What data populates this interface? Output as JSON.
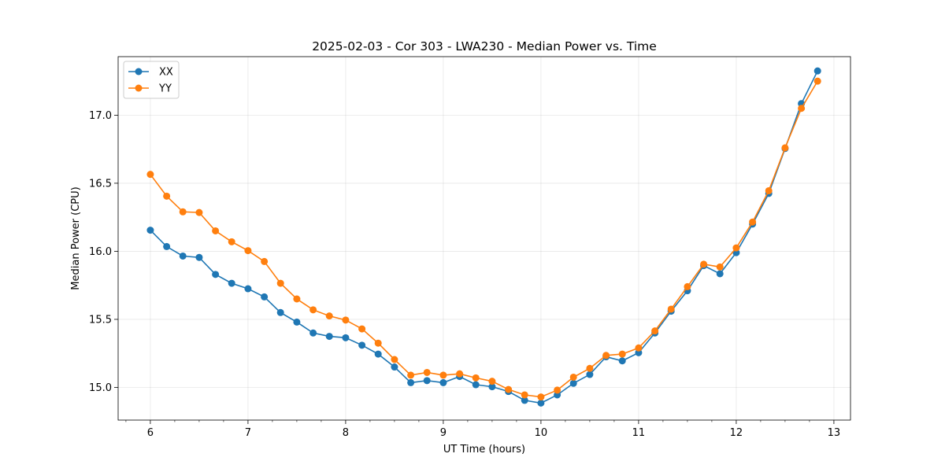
{
  "chart_data": {
    "type": "line",
    "title": "2025-02-03 - Cor 303 - LWA230 - Median Power vs. Time",
    "xlabel": "UT Time (hours)",
    "ylabel": "Median Power (CPU)",
    "xlim": [
      5.67,
      13.17
    ],
    "ylim": [
      14.76,
      17.43
    ],
    "x_ticks": [
      6,
      7,
      8,
      9,
      10,
      11,
      12,
      13
    ],
    "x_tick_labels": [
      "6",
      "7",
      "8",
      "9",
      "10",
      "11",
      "12",
      "13"
    ],
    "x_minor_step": 0.25,
    "y_ticks": [
      15.0,
      15.5,
      16.0,
      16.5,
      17.0
    ],
    "y_tick_labels": [
      "15.0",
      "15.5",
      "16.0",
      "16.5",
      "17.0"
    ],
    "grid": true,
    "legend_position": "top-left",
    "x": [
      6.0,
      6.167,
      6.333,
      6.5,
      6.667,
      6.833,
      7.0,
      7.167,
      7.333,
      7.5,
      7.667,
      7.833,
      8.0,
      8.167,
      8.333,
      8.5,
      8.667,
      8.833,
      9.0,
      9.167,
      9.333,
      9.5,
      9.667,
      9.833,
      10.0,
      10.167,
      10.333,
      10.5,
      10.667,
      10.833,
      11.0,
      11.167,
      11.333,
      11.5,
      11.667,
      11.833,
      12.0,
      12.167,
      12.333,
      12.5,
      12.667,
      12.833
    ],
    "series": [
      {
        "name": "XX",
        "color": "#1f77b4",
        "values": [
          16.155,
          16.035,
          15.965,
          15.955,
          15.83,
          15.765,
          15.725,
          15.665,
          15.55,
          15.48,
          15.4,
          15.375,
          15.365,
          15.31,
          15.245,
          15.15,
          15.035,
          15.05,
          15.035,
          15.08,
          15.02,
          15.005,
          14.97,
          14.905,
          14.885,
          14.945,
          15.03,
          15.095,
          15.225,
          15.195,
          15.255,
          15.4,
          15.56,
          15.71,
          15.895,
          15.835,
          15.99,
          16.2,
          16.425,
          16.755,
          17.085,
          17.325
        ]
      },
      {
        "name": "YY",
        "color": "#ff7f0e",
        "values": [
          16.565,
          16.405,
          16.29,
          16.285,
          16.15,
          16.07,
          16.005,
          15.925,
          15.765,
          15.65,
          15.57,
          15.525,
          15.495,
          15.43,
          15.325,
          15.205,
          15.09,
          15.11,
          15.09,
          15.1,
          15.07,
          15.045,
          14.985,
          14.945,
          14.93,
          14.98,
          15.075,
          15.14,
          15.235,
          15.245,
          15.29,
          15.415,
          15.575,
          15.74,
          15.905,
          15.885,
          16.025,
          16.215,
          16.445,
          16.76,
          17.05,
          17.25
        ]
      }
    ]
  }
}
